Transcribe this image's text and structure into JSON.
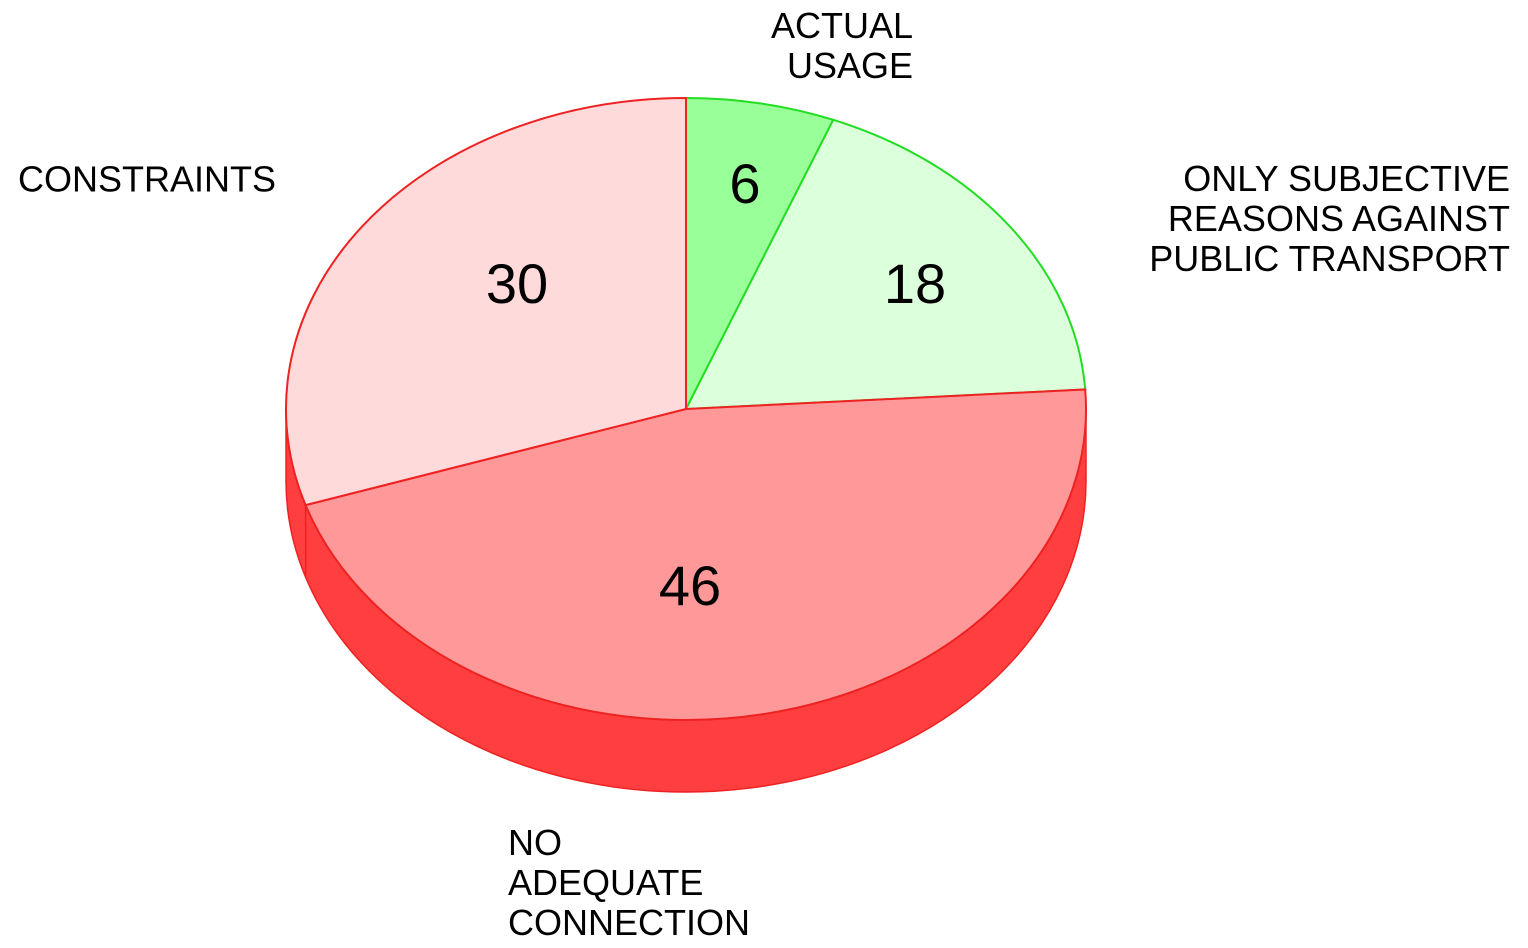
{
  "chart_data": {
    "type": "pie3d",
    "categories": [
      "ACTUAL\nUSAGE",
      "ONLY SUBJECTIVE\nREASONS AGAINST\nPUBLIC TRANSPORT",
      "NO\nADEQUATE\nCONNECTION",
      "CONSTRAINTS"
    ],
    "values": [
      6,
      18,
      46,
      30
    ],
    "colors": [
      "#99ff99",
      "#dcffdc",
      "#ff9999",
      "#ffdada"
    ],
    "edge_colors": [
      "#22dd22",
      "#22dd22",
      "#ee2222",
      "#ee2222"
    ],
    "side_colors": [
      "#44dd44",
      "#88ee88",
      "#ff3f3f",
      "#ff3f3f"
    ]
  }
}
